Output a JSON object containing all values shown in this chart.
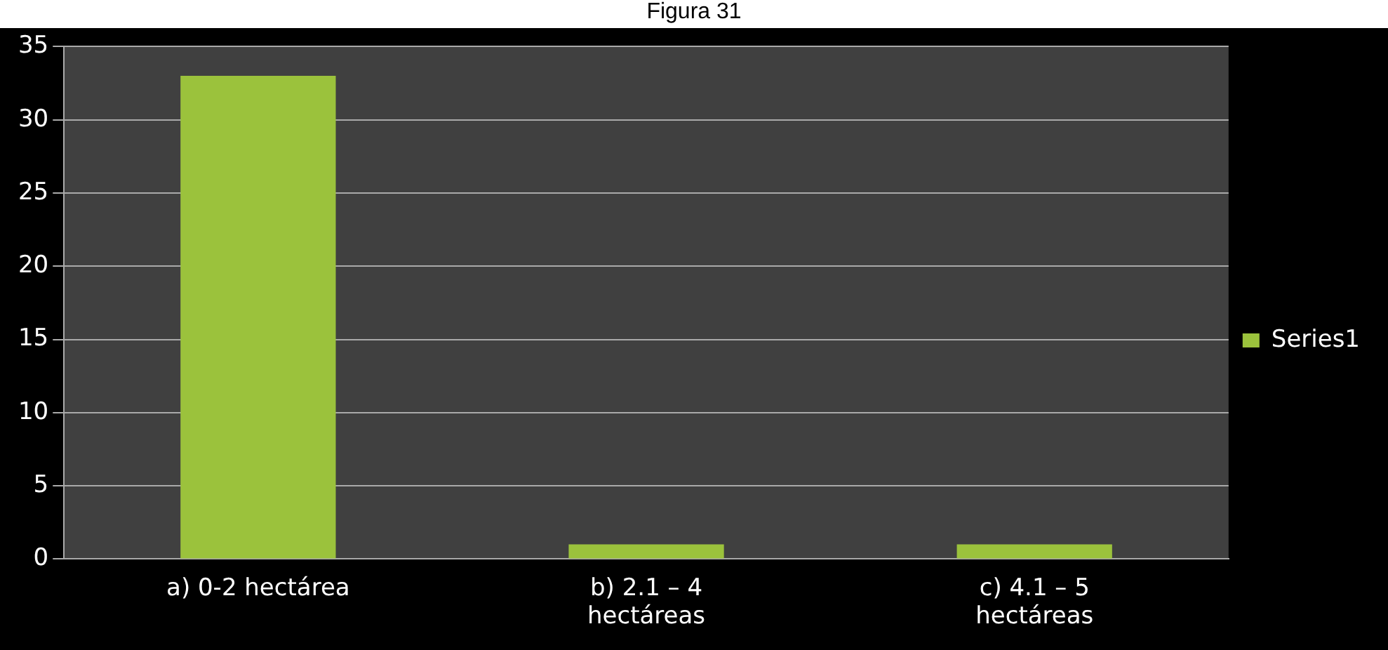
{
  "chart_data": {
    "type": "bar",
    "title": "Figura 31",
    "categories": [
      "a) 0-2 hectárea",
      "b) 2.1 – 4\nhectáreas",
      "c) 4.1 – 5\nhectáreas"
    ],
    "series": [
      {
        "name": "Series1",
        "color": "#9bc23c",
        "values": [
          33,
          1,
          1
        ]
      }
    ],
    "ylim": [
      0,
      35
    ],
    "yticks": [
      0,
      5,
      10,
      15,
      20,
      25,
      30,
      35
    ],
    "grid": "y",
    "legend": "right"
  }
}
